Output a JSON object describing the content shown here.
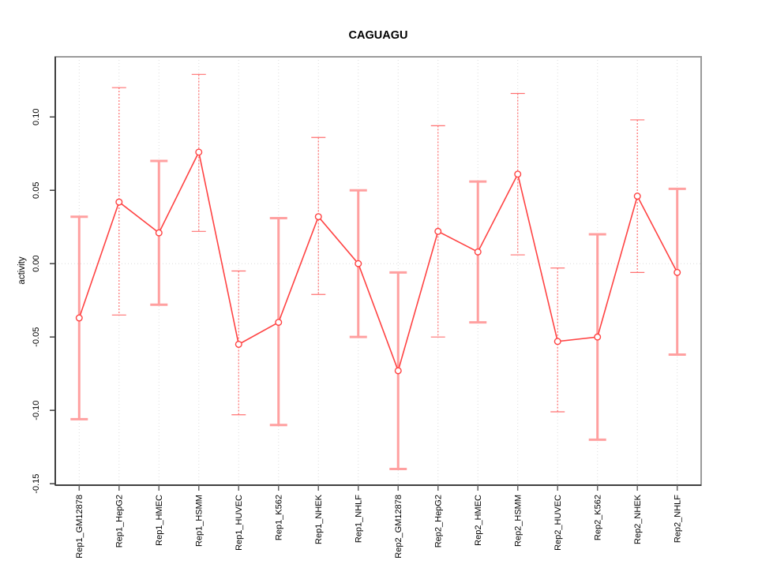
{
  "chart_data": {
    "type": "line",
    "title": "CAGUAGU",
    "xlabel": "",
    "ylabel": "activity",
    "grid": true,
    "legend": "none",
    "ylim": [
      -0.151,
      0.141
    ],
    "yticks": [
      "0.10",
      "0.05",
      "0.00",
      "-0.05",
      "-0.10",
      "-0.15"
    ],
    "categories": [
      "Rep1_GM12878",
      "Rep1_HepG2",
      "Rep1_HMEC",
      "Rep1_HSMM",
      "Rep1_HUVEC",
      "Rep1_K562",
      "Rep1_NHEK",
      "Rep1_NHLF",
      "Rep2_GM12878",
      "Rep2_HepG2",
      "Rep2_HMEC",
      "Rep2_HSMM",
      "Rep2_HUVEC",
      "Rep2_K562",
      "Rep2_NHEK",
      "Rep2_NHLF"
    ],
    "series": [
      {
        "name": "activity",
        "values": [
          -0.037,
          0.042,
          0.021,
          0.076,
          -0.055,
          -0.04,
          0.032,
          0.0,
          -0.073,
          0.022,
          0.008,
          0.061,
          -0.053,
          -0.05,
          0.046,
          -0.006
        ],
        "error_high": [
          0.032,
          0.12,
          0.07,
          0.129,
          -0.005,
          0.031,
          0.086,
          0.05,
          -0.006,
          0.094,
          0.056,
          0.116,
          -0.003,
          0.02,
          0.098,
          0.051
        ],
        "error_low": [
          -0.106,
          -0.035,
          -0.028,
          0.022,
          -0.103,
          -0.11,
          -0.021,
          -0.05,
          -0.14,
          -0.05,
          -0.04,
          0.006,
          -0.101,
          -0.12,
          -0.006,
          -0.062
        ],
        "bar_style": [
          "thick",
          "thin",
          "thick",
          "thin",
          "thin",
          "thick",
          "thin",
          "thick",
          "thick",
          "thin",
          "thick",
          "thin",
          "thin",
          "thick",
          "thin",
          "thick"
        ]
      }
    ],
    "colors": {
      "line": "#ff4343",
      "point": "#ff4343",
      "error_thick": "#ffa0a0",
      "error_thin": "#ff7070",
      "grid": "#dcdcdc",
      "box": "#9a9a9a",
      "axis": "#3f3f3f",
      "tick": "#666666",
      "text": "#000000",
      "background": "#ffffff"
    }
  }
}
